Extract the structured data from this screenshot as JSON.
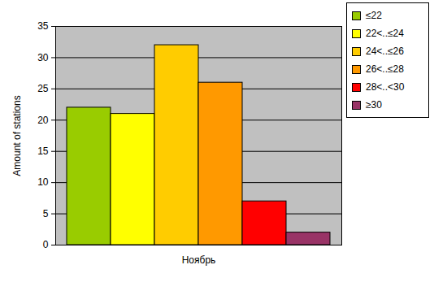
{
  "chart_data": {
    "type": "bar",
    "categories": [
      "Ноябрь"
    ],
    "y_label": "Amount of stations",
    "series": [
      {
        "name": "≤22",
        "color": "#99cc00",
        "values": [
          22
        ]
      },
      {
        "name": "22<..≤24",
        "color": "#ffff00",
        "values": [
          21
        ]
      },
      {
        "name": "24<..≤26",
        "color": "#ffcc00",
        "values": [
          32
        ]
      },
      {
        "name": "26<..≤28",
        "color": "#ff9900",
        "values": [
          26
        ]
      },
      {
        "name": "28<..<30",
        "color": "#ff0000",
        "values": [
          7
        ]
      },
      {
        "name": "≥30",
        "color": "#993366",
        "values": [
          2
        ]
      }
    ],
    "ylim": [
      0,
      35
    ],
    "yticks": [
      0,
      5,
      10,
      15,
      20,
      25,
      30,
      35
    ],
    "grid": true,
    "legend": "top-right"
  }
}
